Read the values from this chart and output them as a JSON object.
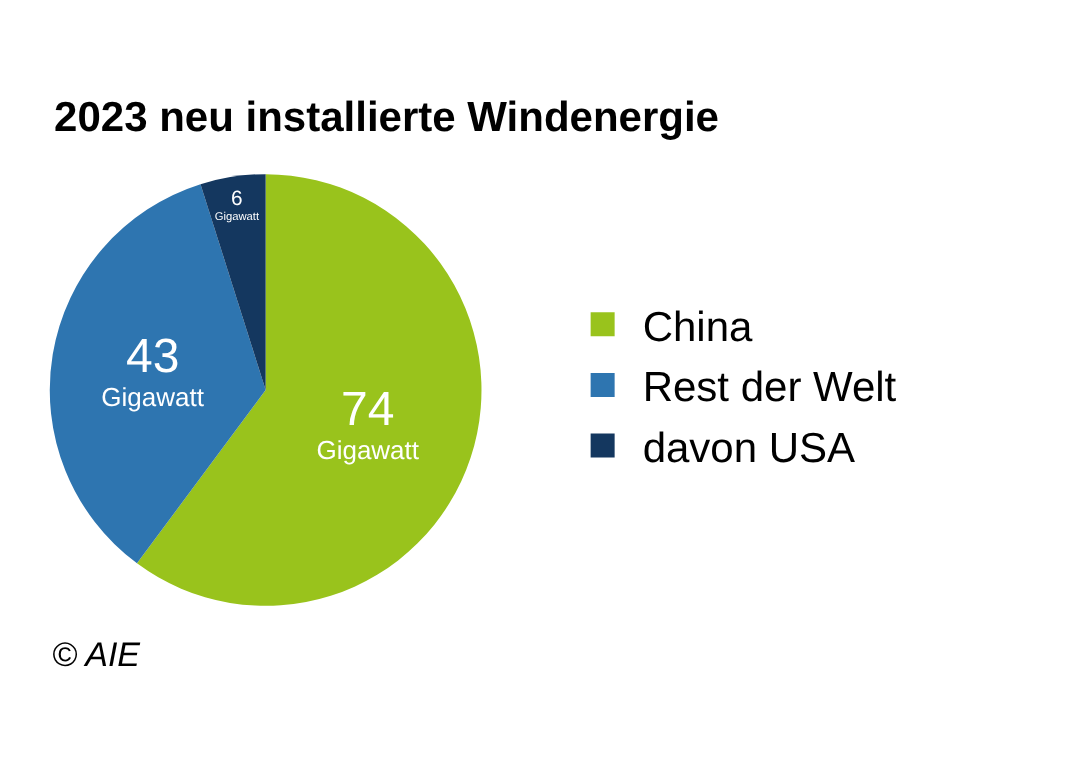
{
  "chart_data": {
    "type": "pie",
    "title": "2023 neu installierte Windenergie",
    "categories": [
      "China",
      "Rest der Welt",
      "davon USA"
    ],
    "values": [
      74,
      43,
      6
    ],
    "colors": [
      "#99c31c",
      "#2e75b0",
      "#14375f"
    ],
    "value_labels": [
      "74\nGigawatt",
      "43\nGigawatt",
      "6\nGigawatt"
    ],
    "legend": "right",
    "annotations": [
      "© AIE"
    ]
  }
}
